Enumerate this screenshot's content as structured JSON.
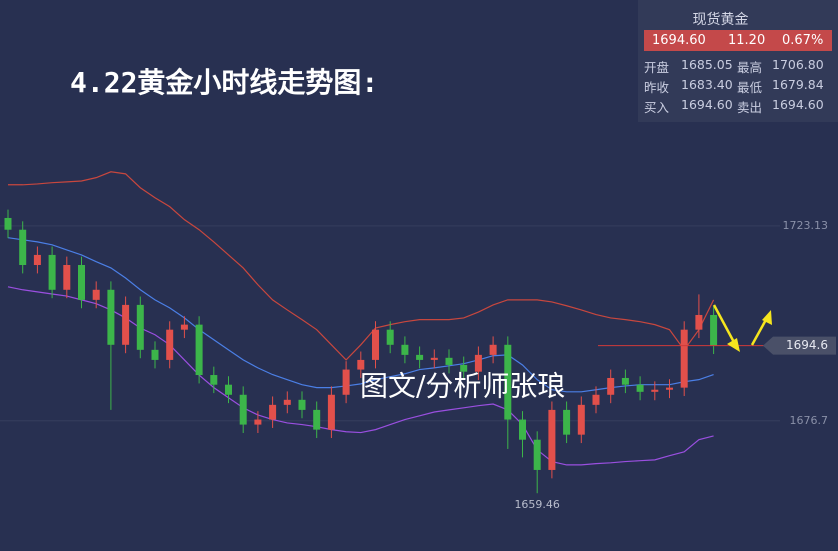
{
  "chart_data": {
    "type": "candlestick",
    "title": "4.22黄金小时线走势图:",
    "annotation": "图文/分析师张琅",
    "ylim": [
      1645.7,
      1776.9
    ],
    "yticks": [
      1723.13,
      1676.7
    ],
    "last_price": 1694.6,
    "up_color": "#e2504b",
    "down_color": "#3cb54a",
    "open": [
      1725.0,
      1722.2,
      1713.8,
      1716.2,
      1707.9,
      1713.8,
      1705.5,
      1707.9,
      1694.8,
      1704.3,
      1693.6,
      1691.2,
      1698.4,
      1699.6,
      1687.6,
      1685.3,
      1682.9,
      1675.8,
      1677.0,
      1680.5,
      1681.7,
      1679.3,
      1674.6,
      1682.9,
      1688.9,
      1691.2,
      1698.4,
      1694.8,
      1692.4,
      1691.2,
      1691.7,
      1690.0,
      1688.4,
      1692.4,
      1694.8,
      1677.0,
      1672.2,
      1665.0,
      1679.3,
      1673.4,
      1680.5,
      1682.9,
      1686.9,
      1685.3,
      1683.6,
      1684.1,
      1684.6,
      1698.4,
      1701.9
    ],
    "high": [
      1727.0,
      1724.2,
      1718.2,
      1718.2,
      1715.8,
      1715.8,
      1709.9,
      1709.9,
      1706.3,
      1706.3,
      1695.6,
      1700.4,
      1701.6,
      1701.6,
      1689.6,
      1687.3,
      1684.9,
      1679.0,
      1682.5,
      1683.7,
      1683.7,
      1681.3,
      1684.9,
      1690.9,
      1693.2,
      1700.4,
      1700.4,
      1696.8,
      1694.4,
      1693.7,
      1693.7,
      1692.0,
      1694.4,
      1696.8,
      1696.8,
      1679.0,
      1674.2,
      1681.3,
      1681.3,
      1682.5,
      1684.9,
      1688.9,
      1688.9,
      1687.3,
      1686.1,
      1686.6,
      1700.4,
      1706.8,
      1703.9
    ],
    "low": [
      1720.2,
      1711.8,
      1711.8,
      1705.9,
      1705.9,
      1703.5,
      1703.5,
      1679.3,
      1692.8,
      1691.6,
      1689.2,
      1689.2,
      1696.4,
      1685.6,
      1683.3,
      1680.9,
      1673.8,
      1673.8,
      1675.0,
      1678.5,
      1677.3,
      1672.6,
      1672.6,
      1680.9,
      1686.9,
      1689.2,
      1692.8,
      1690.4,
      1689.2,
      1689.2,
      1688.0,
      1686.4,
      1686.4,
      1690.4,
      1670.0,
      1668.0,
      1659.46,
      1663.0,
      1671.4,
      1671.4,
      1678.5,
      1680.9,
      1683.3,
      1681.6,
      1681.6,
      1682.1,
      1682.6,
      1696.4,
      1692.6
    ],
    "close": [
      1722.2,
      1713.8,
      1716.2,
      1707.9,
      1713.8,
      1705.5,
      1707.9,
      1694.8,
      1704.3,
      1693.6,
      1691.2,
      1698.4,
      1699.6,
      1687.6,
      1685.3,
      1682.9,
      1675.8,
      1677.0,
      1680.5,
      1681.7,
      1679.3,
      1674.6,
      1682.9,
      1688.9,
      1691.2,
      1698.4,
      1694.8,
      1692.4,
      1691.2,
      1691.7,
      1690.0,
      1688.4,
      1692.4,
      1694.8,
      1677.0,
      1672.2,
      1665.0,
      1679.3,
      1673.4,
      1680.5,
      1682.9,
      1686.9,
      1685.3,
      1683.6,
      1684.1,
      1684.6,
      1698.4,
      1701.9,
      1694.6
    ],
    "bands": [
      {
        "color": "#c8473e",
        "values": [
          1732.9,
          1732.9,
          1733.1,
          1733.4,
          1733.6,
          1733.8,
          1734.6,
          1736.0,
          1735.5,
          1732.2,
          1729.8,
          1727.7,
          1724.6,
          1722.2,
          1719.3,
          1716.2,
          1713.1,
          1709.1,
          1705.5,
          1703.1,
          1700.8,
          1698.4,
          1694.8,
          1691.2,
          1694.8,
          1698.8,
          1699.6,
          1700.3,
          1700.8,
          1700.8,
          1700.8,
          1701.2,
          1702.6,
          1704.3,
          1705.5,
          1705.5,
          1705.5,
          1705.0,
          1704.1,
          1703.1,
          1702.0,
          1701.2,
          1700.8,
          1700.3,
          1699.6,
          1698.4,
          1693.6,
          1698.4,
          1705.5
        ]
      },
      {
        "color": "#4b7fe6",
        "values": [
          1720.3,
          1719.8,
          1719.3,
          1718.6,
          1717.4,
          1716.2,
          1714.6,
          1713.1,
          1710.7,
          1707.9,
          1705.5,
          1703.6,
          1701.2,
          1698.4,
          1696.0,
          1693.6,
          1691.2,
          1689.3,
          1687.7,
          1686.5,
          1685.3,
          1684.6,
          1684.6,
          1685.0,
          1685.5,
          1686.5,
          1687.2,
          1687.9,
          1688.9,
          1689.3,
          1689.8,
          1690.3,
          1691.2,
          1692.2,
          1692.4,
          1690.0,
          1686.5,
          1684.1,
          1683.6,
          1683.6,
          1684.1,
          1684.6,
          1685.0,
          1685.3,
          1685.3,
          1685.3,
          1686.0,
          1686.5,
          1687.7
        ]
      },
      {
        "color": "#9a4fe0",
        "values": [
          1708.6,
          1707.9,
          1707.4,
          1706.9,
          1706.4,
          1705.5,
          1704.6,
          1703.1,
          1701.2,
          1698.8,
          1697.2,
          1694.8,
          1691.2,
          1687.6,
          1684.6,
          1682.2,
          1679.8,
          1678.1,
          1677.0,
          1676.2,
          1675.8,
          1675.3,
          1674.6,
          1674.1,
          1673.9,
          1674.6,
          1675.8,
          1677.0,
          1677.9,
          1678.8,
          1679.3,
          1679.8,
          1680.3,
          1680.7,
          1679.3,
          1675.8,
          1669.8,
          1667.0,
          1666.2,
          1666.2,
          1666.5,
          1666.7,
          1667.0,
          1667.2,
          1667.4,
          1668.4,
          1669.3,
          1672.2,
          1673.1
        ]
      }
    ]
  },
  "quote_panel": {
    "name": "现货黄金",
    "price": "1694.60",
    "change": "11.20",
    "change_pct": "0.67%",
    "rows": [
      [
        "开盘",
        "1685.05",
        "最高",
        "1706.80"
      ],
      [
        "昨收",
        "1683.40",
        "最低",
        "1679.84"
      ],
      [
        "买入",
        "1694.60",
        "卖出",
        "1694.60"
      ]
    ]
  }
}
